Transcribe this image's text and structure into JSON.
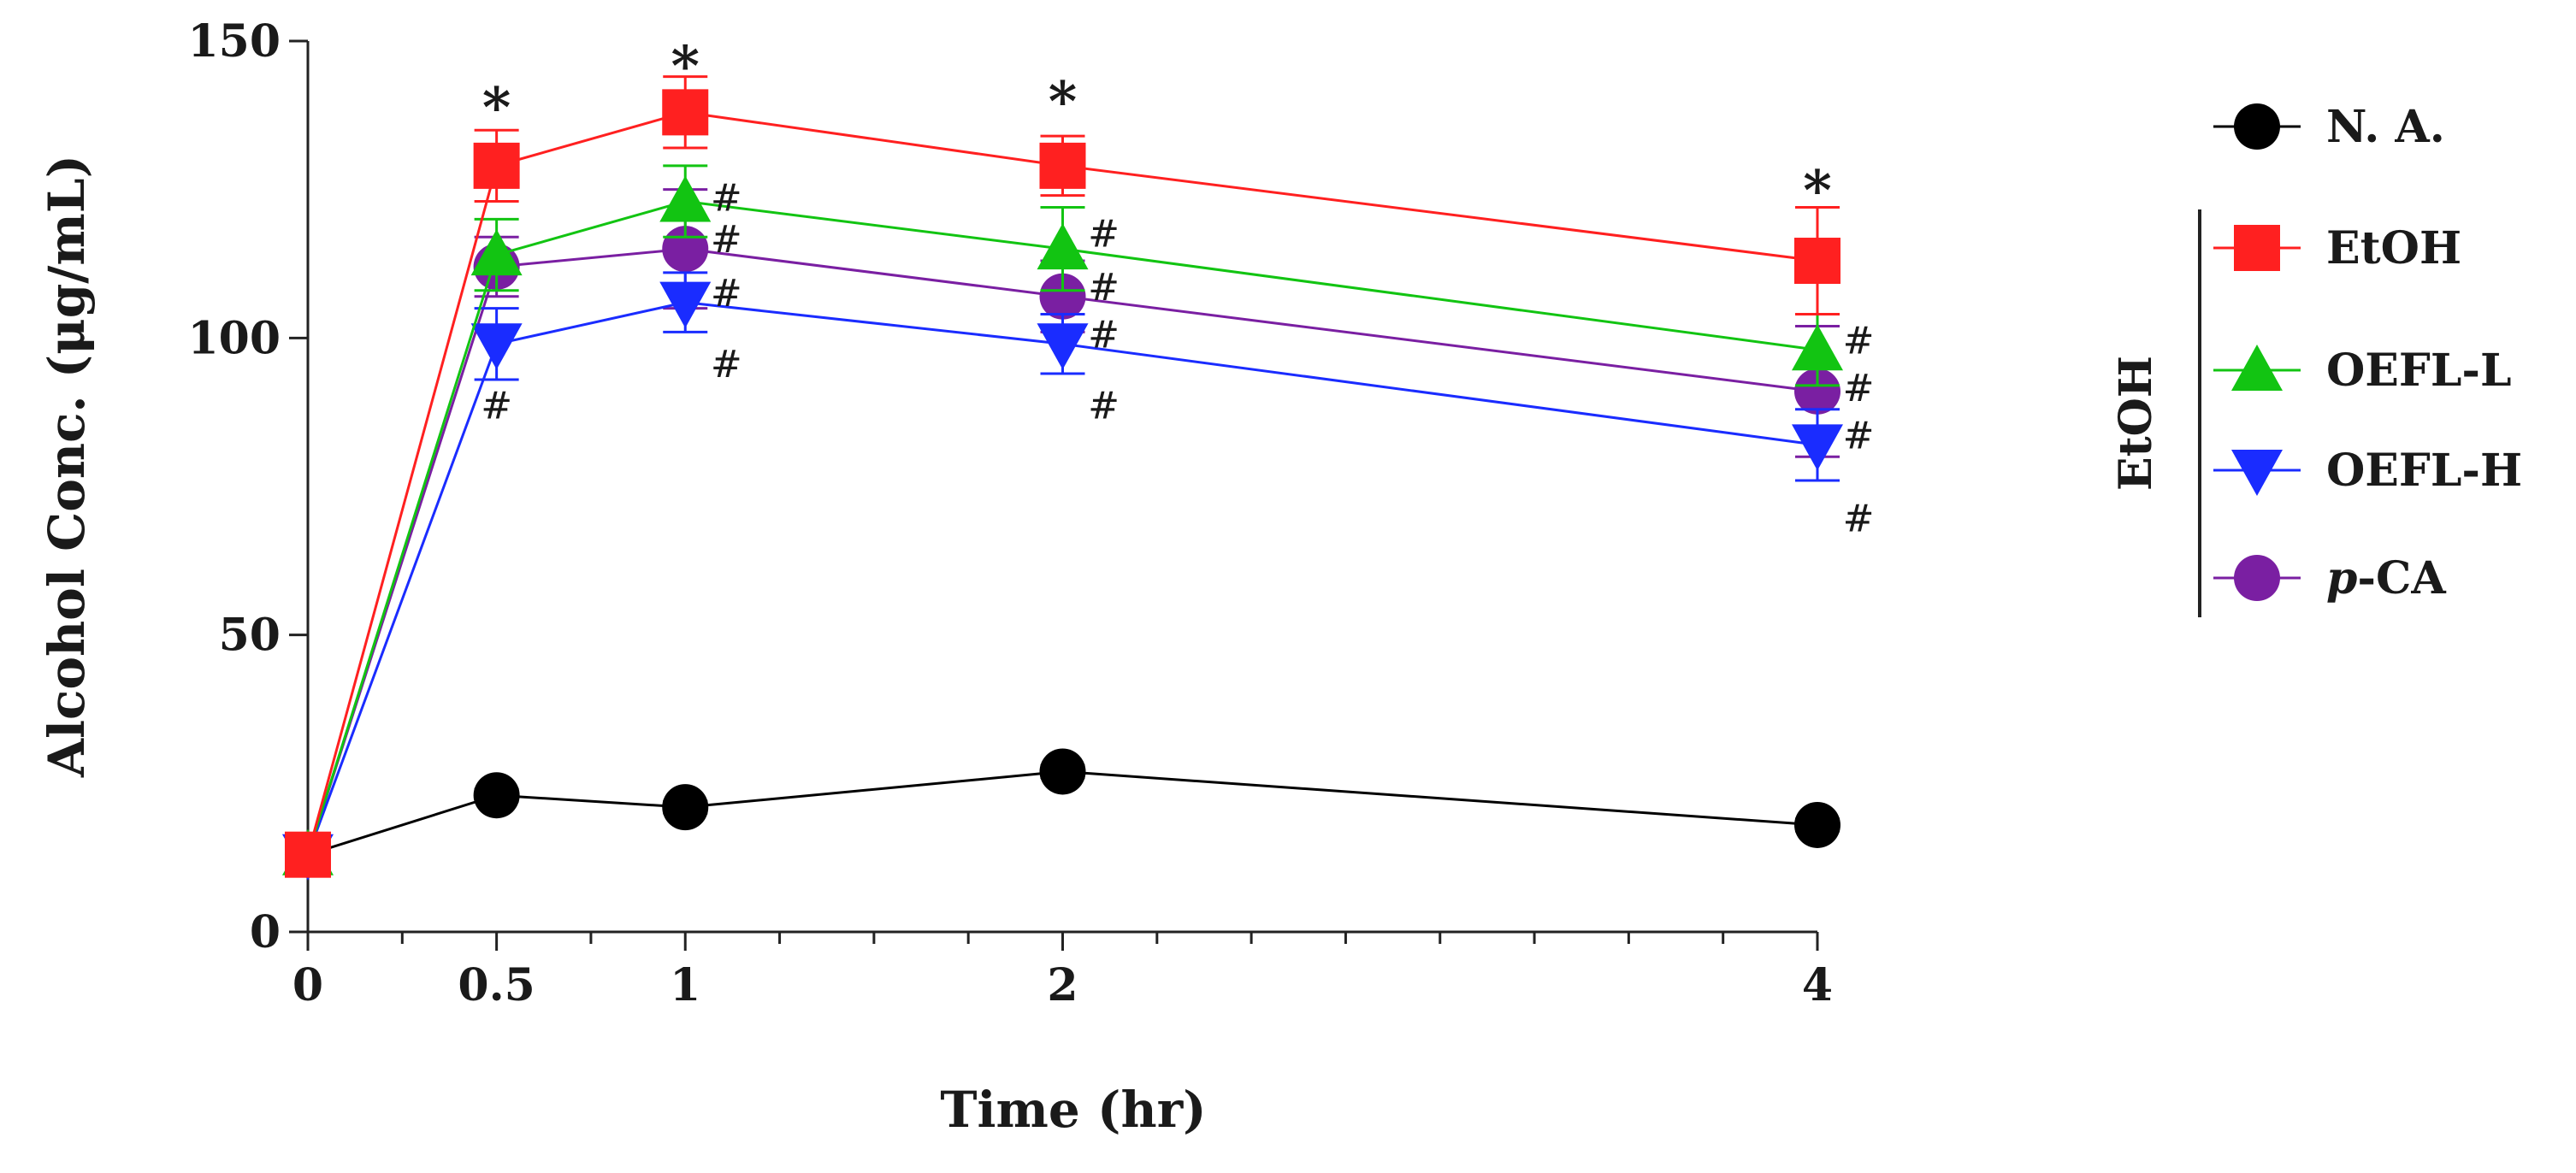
{
  "chart_data": {
    "type": "line",
    "title": "",
    "xlabel": "Time (hr)",
    "ylabel": "Alcohol Conc. (μg/mL)",
    "x": [
      0,
      0.5,
      1,
      2,
      4
    ],
    "x_tick_labels": [
      "0",
      "0.5",
      "1",
      "2",
      "4"
    ],
    "xlim": [
      0,
      4
    ],
    "ylim": [
      0,
      150
    ],
    "y_ticks": [
      0,
      50,
      100,
      150
    ],
    "grid": false,
    "legend_position": "right",
    "legend_group_label": "EtOH",
    "series": [
      {
        "name": "N.A.",
        "display_name": "N. A.",
        "color": "#000000",
        "marker": "circle",
        "values": [
          13,
          23,
          21,
          27,
          18
        ],
        "errors": [
          1,
          1,
          1,
          1,
          1
        ]
      },
      {
        "name": "EtOH",
        "display_name": "EtOH",
        "color": "#ff2020",
        "marker": "square",
        "values": [
          13,
          129,
          138,
          129,
          113
        ],
        "errors": [
          3,
          6,
          6,
          5,
          9
        ]
      },
      {
        "name": "OEFL-L",
        "display_name": "OEFL-L",
        "color": "#12c412",
        "marker": "triangle",
        "values": [
          13,
          114,
          123,
          115,
          98
        ],
        "errors": [
          3,
          6,
          6,
          7,
          6
        ]
      },
      {
        "name": "OEFL-H",
        "display_name": "OEFL-H",
        "color": "#1a2cff",
        "marker": "triangle-down",
        "values": [
          13,
          99,
          106,
          99,
          82
        ],
        "errors": [
          3,
          6,
          5,
          5,
          6
        ]
      },
      {
        "name": "p-CA",
        "display_name": "p-CA",
        "color": "#7a1fa2",
        "marker": "circle",
        "values": [
          13,
          112,
          115,
          107,
          91
        ],
        "errors": [
          3,
          5,
          10,
          6,
          11
        ]
      }
    ],
    "annotations": [
      {
        "text": "*",
        "x": 0.5,
        "y": 140,
        "note": "EtOH significance"
      },
      {
        "text": "*",
        "x": 1,
        "y": 147
      },
      {
        "text": "*",
        "x": 2,
        "y": 141
      },
      {
        "text": "*",
        "x": 4,
        "y": 126
      },
      {
        "text": "#",
        "x": 0.5,
        "y": 89
      },
      {
        "text": "#",
        "x": 1,
        "y": 124
      },
      {
        "text": "#",
        "x": 1,
        "y": 117
      },
      {
        "text": "#",
        "x": 1,
        "y": 108
      },
      {
        "text": "#",
        "x": 1,
        "y": 96
      },
      {
        "text": "#",
        "x": 2,
        "y": 118
      },
      {
        "text": "#",
        "x": 2,
        "y": 109
      },
      {
        "text": "#",
        "x": 2,
        "y": 101
      },
      {
        "text": "#",
        "x": 2,
        "y": 89
      },
      {
        "text": "#",
        "x": 4,
        "y": 100
      },
      {
        "text": "#",
        "x": 4,
        "y": 92
      },
      {
        "text": "#",
        "x": 4,
        "y": 84
      },
      {
        "text": "#",
        "x": 4,
        "y": 70
      }
    ]
  }
}
